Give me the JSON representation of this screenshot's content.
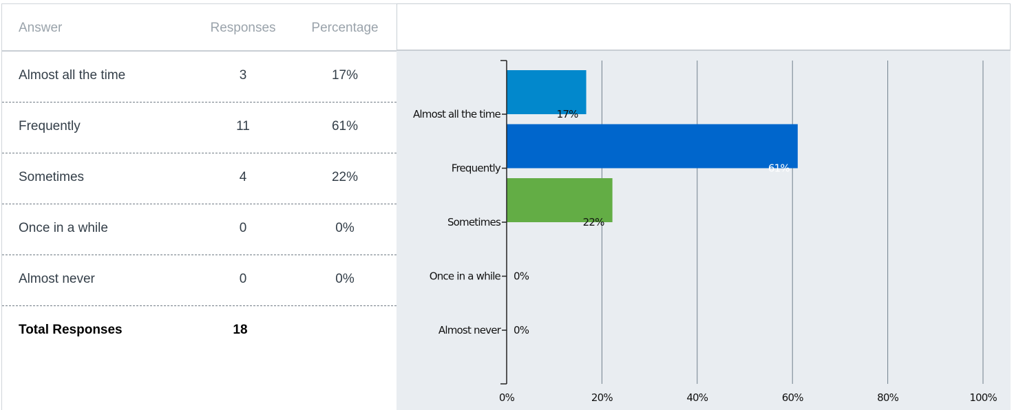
{
  "table": {
    "headers": {
      "answer": "Answer",
      "responses": "Responses",
      "percentage": "Percentage"
    },
    "rows": [
      {
        "answer": "Almost all the time",
        "responses": "3",
        "percentage": "17%"
      },
      {
        "answer": "Frequently",
        "responses": "11",
        "percentage": "61%"
      },
      {
        "answer": "Sometimes",
        "responses": "4",
        "percentage": "22%"
      },
      {
        "answer": "Once in a while",
        "responses": "0",
        "percentage": "0%"
      },
      {
        "answer": "Almost never",
        "responses": "0",
        "percentage": "0%"
      }
    ],
    "total": {
      "label": "Total Responses",
      "value": "18"
    }
  },
  "chart_data": {
    "type": "bar",
    "orientation": "horizontal",
    "categories": [
      "Almost all the time",
      "Frequently",
      "Sometimes",
      "Once in a while",
      "Almost never"
    ],
    "values": [
      16.7,
      61.1,
      22.2,
      0,
      0
    ],
    "data_labels": [
      "17%",
      "61%",
      "22%",
      "0%",
      "0%"
    ],
    "bar_colors": [
      "#0288cc",
      "#0066cc",
      "#63ad45",
      "#63ad45",
      "#63ad45"
    ],
    "x_ticks": [
      "0%",
      "20%",
      "40%",
      "60%",
      "80%",
      "100%"
    ],
    "xlim": [
      0,
      100
    ],
    "grid": true,
    "background": "#e9edf1",
    "title": "",
    "xlabel": "",
    "ylabel": ""
  }
}
